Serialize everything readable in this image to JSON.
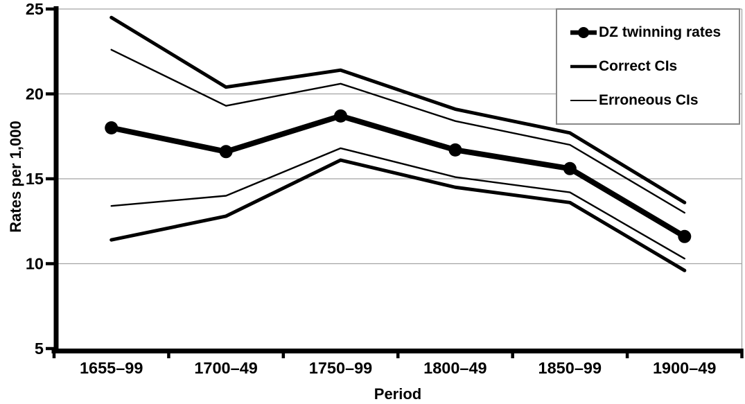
{
  "chart_data": {
    "type": "line",
    "title": "",
    "xlabel": "Period",
    "ylabel": "Rates per 1,000",
    "ylim": [
      5,
      25
    ],
    "yticks": [
      5,
      10,
      15,
      20,
      25
    ],
    "grid": true,
    "categories": [
      "1655–99",
      "1700–49",
      "1750–99",
      "1800–49",
      "1850–99",
      "1900–49"
    ],
    "series": [
      {
        "name": "Correct CIs",
        "role": "correct-upper",
        "values": [
          24.5,
          20.4,
          21.4,
          19.1,
          17.7,
          13.6
        ]
      },
      {
        "name": "Correct CIs",
        "role": "correct-lower",
        "values": [
          11.4,
          12.8,
          16.1,
          14.5,
          13.6,
          9.6
        ]
      },
      {
        "name": "Erroneous CIs",
        "role": "erroneous-upper",
        "values": [
          22.6,
          19.3,
          20.6,
          18.4,
          17.0,
          13.0
        ]
      },
      {
        "name": "Erroneous CIs",
        "role": "erroneous-lower",
        "values": [
          13.4,
          14.0,
          16.8,
          15.1,
          14.2,
          10.3
        ]
      },
      {
        "name": "DZ twinning rates",
        "role": "dz",
        "values": [
          18.0,
          16.6,
          18.7,
          16.7,
          15.6,
          11.6
        ]
      }
    ],
    "legend": {
      "position": "top-right",
      "entries": [
        "DZ twinning rates",
        "Correct CIs",
        "Erroneous CIs"
      ]
    },
    "colors": {
      "line": "#000000",
      "gridline": "#a3a3a3",
      "plot_border": "#a3a3a3",
      "legend_border": "#888888",
      "background": "#ffffff"
    }
  }
}
